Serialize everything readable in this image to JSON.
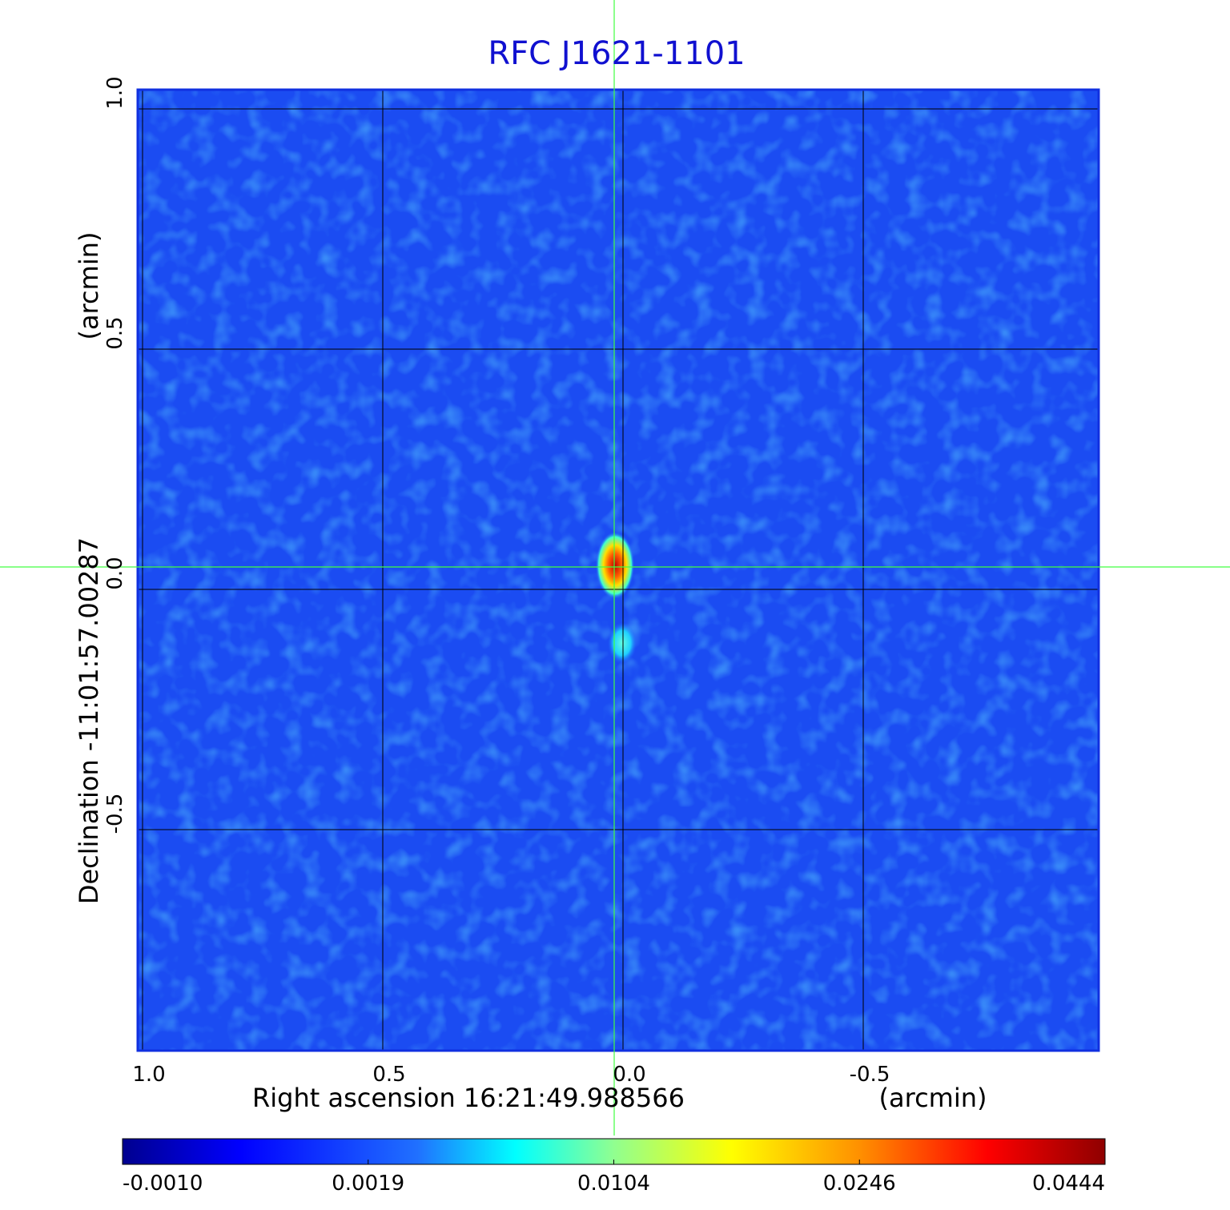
{
  "chart_data": {
    "type": "image",
    "title": "RFC J1621-1101",
    "x_label": "Right ascension  16:21:49.988566",
    "x_unit": "(arcmin)",
    "y_label": "Declination  -11:01:57.00287",
    "y_unit": "(arcmin)",
    "xlim": [
      1.01,
      -0.99
    ],
    "xticks": [
      {
        "value": 1,
        "label": "1.0"
      },
      {
        "value": 0.5,
        "label": "0.5"
      },
      {
        "value": 0,
        "label": "0.0"
      },
      {
        "value": -0.5,
        "label": "-0.5"
      }
    ],
    "ylim": [
      -0.96,
      1.04
    ],
    "yticks": [
      {
        "value": -0.5,
        "label": "-0.5"
      },
      {
        "value": 0,
        "label": "0.0"
      },
      {
        "value": 0.5,
        "label": "0.5"
      },
      {
        "value": 1,
        "label": "1.0"
      }
    ],
    "grid": true,
    "colorbar_ticks": [
      {
        "value": -0.001,
        "label": "-0.0010"
      },
      {
        "value": 0.0019,
        "label": "0.0019"
      },
      {
        "value": 0.0104,
        "label": "0.0104"
      },
      {
        "value": 0.0246,
        "label": "0.0246"
      },
      {
        "value": 0.0444,
        "label": "0.0444"
      }
    ]
  }
}
